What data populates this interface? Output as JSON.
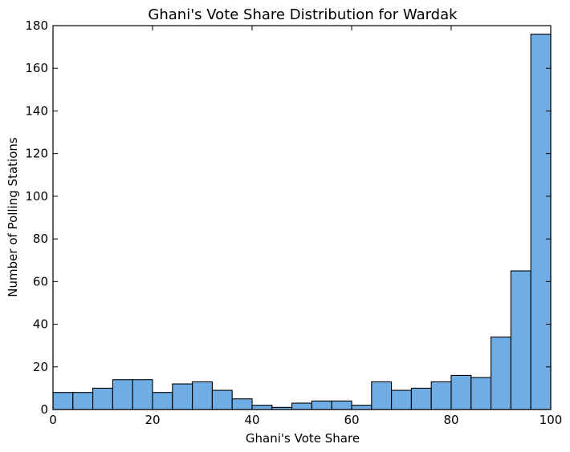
{
  "chart_data": {
    "type": "bar",
    "title": "Ghani's Vote Share Distribution for Wardak",
    "xlabel": "Ghani's Vote Share",
    "ylabel": "Number of Polling Stations",
    "xlim": [
      0,
      100
    ],
    "ylim": [
      0,
      180
    ],
    "xticks": [
      0,
      20,
      40,
      60,
      80,
      100
    ],
    "yticks": [
      0,
      20,
      40,
      60,
      80,
      100,
      120,
      140,
      160,
      180
    ],
    "bin_width": 4,
    "bin_edges": [
      0,
      4,
      8,
      12,
      16,
      20,
      24,
      28,
      32,
      36,
      40,
      44,
      48,
      52,
      56,
      60,
      64,
      68,
      72,
      76,
      80,
      84,
      88,
      92,
      96,
      100
    ],
    "values": [
      8,
      8,
      10,
      14,
      14,
      8,
      12,
      13,
      9,
      5,
      2,
      1,
      3,
      4,
      4,
      2,
      13,
      9,
      10,
      13,
      16,
      15,
      34,
      65,
      176
    ],
    "bar_color": "#6fade4",
    "grid": false
  }
}
